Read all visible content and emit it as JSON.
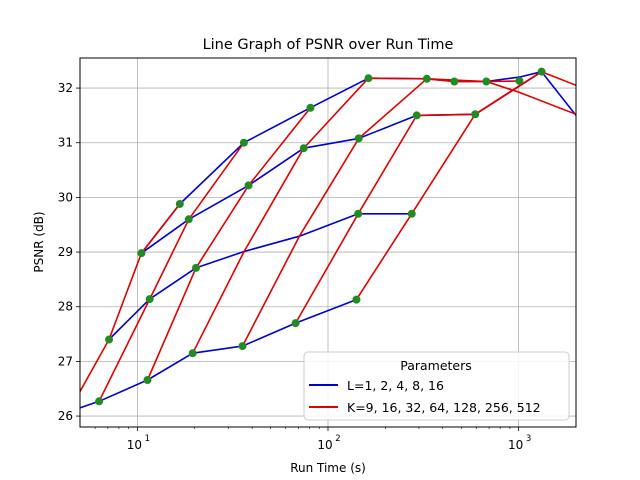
{
  "chart_data": {
    "type": "line",
    "title": "Line Graph of PSNR over Run Time",
    "xlabel": "Run Time (s)",
    "ylabel": "PSNR (dB)",
    "xscale": "log",
    "xlim": [
      5,
      2000
    ],
    "ylim": [
      25.8,
      32.55
    ],
    "grid": true,
    "x_ticks": [
      {
        "value": 10,
        "base": "10",
        "exp": "1"
      },
      {
        "value": 100,
        "base": "10",
        "exp": "2"
      },
      {
        "value": 1000,
        "base": "10",
        "exp": "3"
      }
    ],
    "y_ticks": [
      "26",
      "27",
      "28",
      "29",
      "30",
      "31",
      "32"
    ],
    "legend": {
      "title": "Parameters",
      "placement": "lower-right",
      "entries": [
        {
          "label": "L=1, 2, 4, 8, 16",
          "color": "#0000cc"
        },
        {
          "label": "K=9, 16, 32, 64, 128, 256, 512",
          "color": "#dd0000"
        }
      ]
    },
    "marker_color": "#228b22",
    "line_series": [
      {
        "group": "L",
        "color": "#0000cc",
        "points": [
          [
            5,
            26.15
          ],
          [
            6.3,
            26.27
          ],
          [
            11.3,
            26.66
          ],
          [
            19.5,
            27.15
          ],
          [
            35.6,
            27.28
          ],
          [
            67.6,
            27.7
          ],
          [
            141,
            28.13
          ]
        ]
      },
      {
        "group": "L",
        "color": "#0000cc",
        "points": [
          [
            7.1,
            27.4
          ],
          [
            11.6,
            28.14
          ],
          [
            20.3,
            28.71
          ],
          [
            36.3,
            29.01
          ],
          [
            70.8,
            29.29
          ],
          [
            144,
            29.7
          ],
          [
            275,
            29.7
          ]
        ]
      },
      {
        "group": "L",
        "color": "#0000cc",
        "points": [
          [
            10.5,
            28.98
          ],
          [
            18.6,
            29.6
          ],
          [
            38.3,
            30.22
          ],
          [
            74.6,
            30.9
          ],
          [
            145,
            31.08
          ],
          [
            292,
            31.5
          ],
          [
            592,
            31.52
          ],
          [
            1320,
            32.3
          ],
          [
            2000,
            31.5
          ]
        ]
      },
      {
        "group": "L",
        "color": "#0000cc",
        "points": [
          [
            10.5,
            28.98
          ],
          [
            16.7,
            29.88
          ],
          [
            36.2,
            31.0
          ],
          [
            80.9,
            31.64
          ],
          [
            163,
            32.18
          ],
          [
            330,
            32.17
          ],
          [
            460,
            32.12
          ],
          [
            677,
            32.12
          ],
          [
            1010,
            32.2
          ],
          [
            1320,
            32.3
          ]
        ]
      },
      {
        "group": "K",
        "color": "#dd0000",
        "points": [
          [
            5,
            26.45
          ],
          [
            7.1,
            27.4
          ],
          [
            10.5,
            28.98
          ],
          [
            16.7,
            29.88
          ]
        ]
      },
      {
        "group": "K",
        "color": "#dd0000",
        "points": [
          [
            6.3,
            26.27
          ],
          [
            11.6,
            28.14
          ],
          [
            18.6,
            29.6
          ],
          [
            36.2,
            31.0
          ]
        ]
      },
      {
        "group": "K",
        "color": "#dd0000",
        "points": [
          [
            11.3,
            26.66
          ],
          [
            20.3,
            28.71
          ],
          [
            38.3,
            30.22
          ],
          [
            80.9,
            31.64
          ]
        ]
      },
      {
        "group": "K",
        "color": "#dd0000",
        "points": [
          [
            19.5,
            27.15
          ],
          [
            36.3,
            29.01
          ],
          [
            74.6,
            30.9
          ],
          [
            163,
            32.18
          ],
          [
            330,
            32.17
          ],
          [
            677,
            32.12
          ],
          [
            1010,
            32.13
          ]
        ]
      },
      {
        "group": "K",
        "color": "#dd0000",
        "points": [
          [
            35.6,
            27.28
          ],
          [
            70.8,
            29.29
          ],
          [
            145,
            31.08
          ],
          [
            330,
            32.17
          ],
          [
            460,
            32.12
          ],
          [
            677,
            32.12
          ],
          [
            1010,
            31.92
          ],
          [
            2000,
            31.52
          ]
        ]
      },
      {
        "group": "K",
        "color": "#dd0000",
        "points": [
          [
            67.6,
            27.7
          ],
          [
            144,
            29.7
          ],
          [
            292,
            31.5
          ],
          [
            592,
            31.52
          ],
          [
            1320,
            32.3
          ],
          [
            2000,
            32.05
          ]
        ]
      },
      {
        "group": "K",
        "color": "#dd0000",
        "points": [
          [
            141,
            28.13
          ],
          [
            275,
            29.7
          ],
          [
            592,
            31.52
          ],
          [
            1320,
            32.3
          ]
        ]
      }
    ],
    "markers": [
      [
        6.3,
        26.27
      ],
      [
        7.1,
        27.4
      ],
      [
        10.5,
        28.98
      ],
      [
        11.3,
        26.66
      ],
      [
        11.6,
        28.14
      ],
      [
        16.7,
        29.88
      ],
      [
        18.6,
        29.6
      ],
      [
        19.5,
        27.15
      ],
      [
        20.3,
        28.71
      ],
      [
        35.6,
        27.28
      ],
      [
        36.2,
        31.0
      ],
      [
        38.3,
        30.22
      ],
      [
        67.6,
        27.7
      ],
      [
        74.6,
        30.9
      ],
      [
        80.9,
        31.64
      ],
      [
        141,
        28.13
      ],
      [
        144,
        29.7
      ],
      [
        145,
        31.08
      ],
      [
        163,
        32.18
      ],
      [
        275,
        29.7
      ],
      [
        292,
        31.5
      ],
      [
        330,
        32.17
      ],
      [
        460,
        32.12
      ],
      [
        592,
        31.52
      ],
      [
        677,
        32.12
      ],
      [
        1010,
        32.13
      ],
      [
        1320,
        32.3
      ]
    ]
  }
}
